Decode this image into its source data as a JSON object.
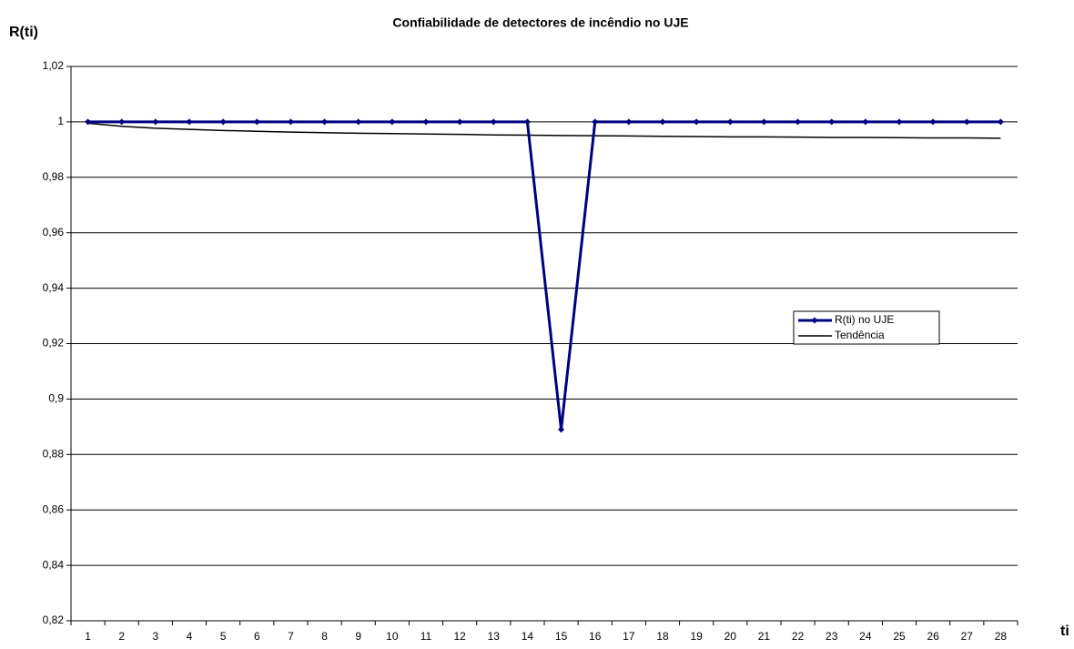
{
  "chart_data": {
    "type": "line",
    "title": "Confiabilidade de detectores de incêndio no UJE",
    "y_label": "R(ti)",
    "x_label": "ti",
    "categories": [
      "1",
      "2",
      "3",
      "4",
      "5",
      "6",
      "7",
      "8",
      "9",
      "10",
      "11",
      "12",
      "13",
      "14",
      "15",
      "16",
      "17",
      "18",
      "19",
      "20",
      "21",
      "22",
      "23",
      "24",
      "25",
      "26",
      "27",
      "28"
    ],
    "series": [
      {
        "name": "R(ti) no UJE",
        "color": "#000080",
        "marker": "diamond",
        "values": [
          1,
          1,
          1,
          1,
          1,
          1,
          1,
          1,
          1,
          1,
          1,
          1,
          1,
          1,
          0.889,
          1,
          1,
          1,
          1,
          1,
          1,
          1,
          1,
          1,
          1,
          1,
          1,
          1
        ]
      },
      {
        "name": "Tendência",
        "color": "#000000",
        "values": [
          0.9995,
          0.9984,
          0.9977,
          0.9973,
          0.9969,
          0.9966,
          0.9963,
          0.9961,
          0.9959,
          0.9958,
          0.9956,
          0.9955,
          0.9953,
          0.9952,
          0.9951,
          0.995,
          0.9949,
          0.9948,
          0.9947,
          0.9946,
          0.9946,
          0.9945,
          0.9944,
          0.9944,
          0.9943,
          0.9942,
          0.9942,
          0.9941
        ]
      }
    ],
    "ylim": [
      0.82,
      1.02
    ],
    "yticks": [
      {
        "value": 0.82,
        "label": "0,82"
      },
      {
        "value": 0.84,
        "label": "0,84"
      },
      {
        "value": 0.86,
        "label": "0,86"
      },
      {
        "value": 0.88,
        "label": "0,88"
      },
      {
        "value": 0.9,
        "label": "0,9"
      },
      {
        "value": 0.92,
        "label": "0,92"
      },
      {
        "value": 0.94,
        "label": "0,94"
      },
      {
        "value": 0.96,
        "label": "0,96"
      },
      {
        "value": 0.98,
        "label": "0,98"
      },
      {
        "value": 1,
        "label": "1"
      },
      {
        "value": 1.02,
        "label": "1,02"
      }
    ],
    "grid": true,
    "legend": "right"
  }
}
